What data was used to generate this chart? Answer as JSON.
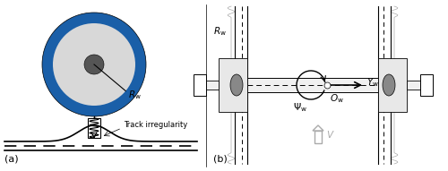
{
  "fig_width": 5.0,
  "fig_height": 1.91,
  "dpi": 100,
  "bg_color": "#ffffff",
  "wheel_outer_color": "#1a5fa8",
  "wheel_inner_color": "#d8d8d8",
  "wheel_hub_color": "#555555",
  "Rw_label": "$R_\\mathrm{w}$",
  "label_a": "(a)",
  "label_b": "(b)",
  "track_irregularity_label": "Track irregularity",
  "Rw_top_label": "$R_\\mathrm{w}$",
  "Yw_label": "$Y_\\mathrm{w}$",
  "Psw_label": "$\\Psi_\\mathrm{w}$",
  "Ow_label": "$O_\\mathrm{w}$",
  "V_label": "$V$"
}
